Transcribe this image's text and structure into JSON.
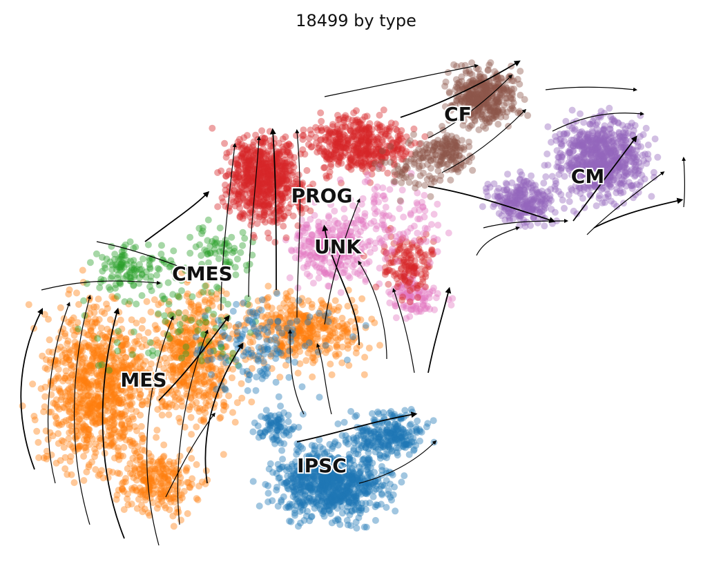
{
  "title": "18499 by type",
  "chart_data": {
    "type": "scatter",
    "title": "18499 by type",
    "embedding": "UMAP with RNA velocity streamlines",
    "grid": false,
    "axes_visible": false,
    "legend": "on data",
    "series": [
      {
        "name": "CF",
        "color": "#8c564b"
      },
      {
        "name": "CM",
        "color": "#9467bd"
      },
      {
        "name": "PROG",
        "color": "#d62728"
      },
      {
        "name": "UNK",
        "color": "#e377c2"
      },
      {
        "name": "CMES",
        "color": "#2ca02c"
      },
      {
        "name": "MES",
        "color": "#ff7f0e"
      },
      {
        "name": "IPSC",
        "color": "#1f77b4"
      }
    ],
    "cluster_labels": [
      "CF",
      "CM",
      "PROG",
      "UNK",
      "CMES",
      "MES",
      "IPSC"
    ]
  }
}
